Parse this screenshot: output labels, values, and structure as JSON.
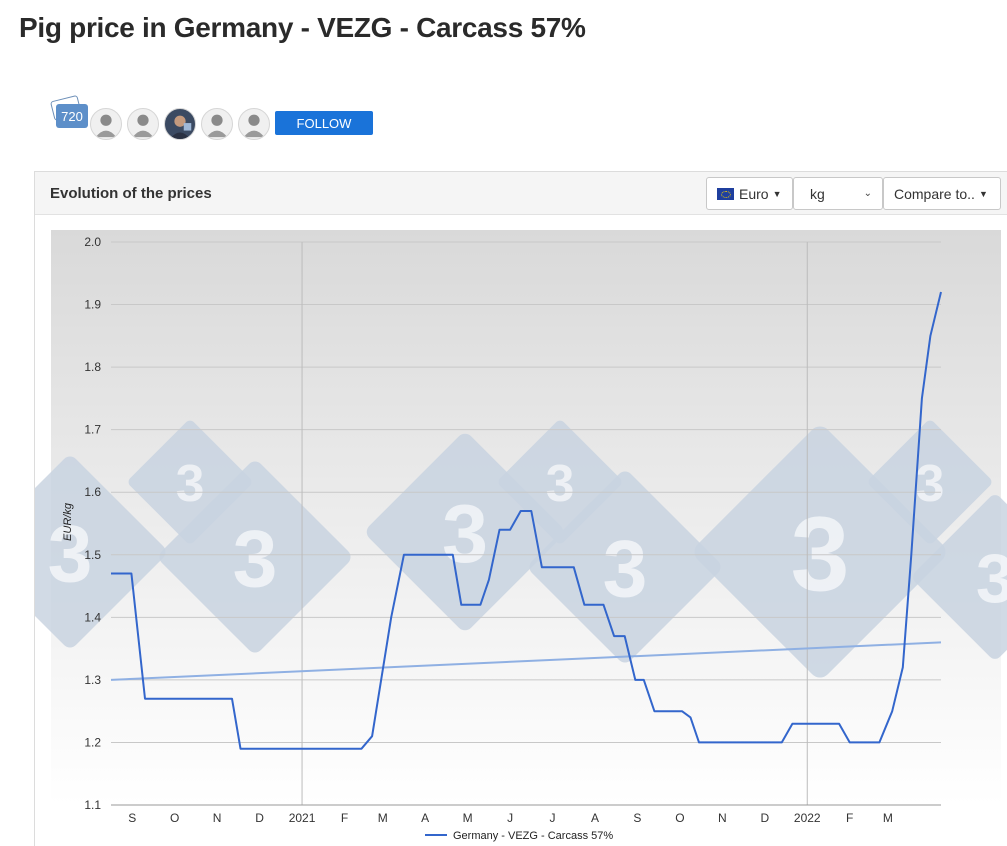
{
  "page": {
    "title": "Pig price in Germany - VEZG - Carcass 57%"
  },
  "follow": {
    "followers_count": "720",
    "avatars": [
      "user-avatar",
      "user-avatar",
      "user-photo-avatar",
      "user-avatar",
      "user-avatar"
    ],
    "follow_label": "FOLLOW"
  },
  "panel": {
    "title": "Evolution of the prices",
    "currency_label": "Euro",
    "unit_value": "kg",
    "compare_label": "Compare to.."
  },
  "colors": {
    "series": "#3366cc",
    "trend": "#8fb0e3",
    "button": "#1a73d9",
    "watermark": "#c9d4e1"
  },
  "chart_data": {
    "type": "line",
    "ylabel": "EUR/kg",
    "ylim": [
      1.1,
      2.0
    ],
    "yticks": [
      1.1,
      1.2,
      1.3,
      1.4,
      1.5,
      1.6,
      1.7,
      1.8,
      1.9,
      2.0
    ],
    "x_range": [
      0,
      19.3
    ],
    "x_ticks": [
      {
        "label": "S",
        "x": 0.5
      },
      {
        "label": "O",
        "x": 1.5
      },
      {
        "label": "N",
        "x": 2.5
      },
      {
        "label": "D",
        "x": 3.5
      },
      {
        "label": "2021",
        "x": 4.5
      },
      {
        "label": "F",
        "x": 5.5
      },
      {
        "label": "M",
        "x": 6.4
      },
      {
        "label": "A",
        "x": 7.4
      },
      {
        "label": "M",
        "x": 8.4
      },
      {
        "label": "J",
        "x": 9.4
      },
      {
        "label": "J",
        "x": 10.4
      },
      {
        "label": "A",
        "x": 11.4
      },
      {
        "label": "S",
        "x": 12.4
      },
      {
        "label": "O",
        "x": 13.4
      },
      {
        "label": "N",
        "x": 14.4
      },
      {
        "label": "D",
        "x": 15.4
      },
      {
        "label": "2022",
        "x": 16.4
      },
      {
        "label": "F",
        "x": 17.4
      },
      {
        "label": "M",
        "x": 18.3
      }
    ],
    "grid": true,
    "legend": "bottom-center",
    "series": [
      {
        "name": "Germany - VEZG - Carcass 57%",
        "points": [
          [
            0,
            1.47
          ],
          [
            0.48,
            1.47
          ],
          [
            0.8,
            1.27
          ],
          [
            2.85,
            1.27
          ],
          [
            3.05,
            1.19
          ],
          [
            5.9,
            1.19
          ],
          [
            6.15,
            1.21
          ],
          [
            6.6,
            1.4
          ],
          [
            6.9,
            1.5
          ],
          [
            8.05,
            1.5
          ],
          [
            8.25,
            1.42
          ],
          [
            8.7,
            1.42
          ],
          [
            8.9,
            1.46
          ],
          [
            9.15,
            1.54
          ],
          [
            9.4,
            1.54
          ],
          [
            9.65,
            1.57
          ],
          [
            9.9,
            1.57
          ],
          [
            10.15,
            1.48
          ],
          [
            10.9,
            1.48
          ],
          [
            11.15,
            1.42
          ],
          [
            11.6,
            1.42
          ],
          [
            11.85,
            1.37
          ],
          [
            12.1,
            1.37
          ],
          [
            12.35,
            1.3
          ],
          [
            12.55,
            1.3
          ],
          [
            12.8,
            1.25
          ],
          [
            13.45,
            1.25
          ],
          [
            13.65,
            1.24
          ],
          [
            13.85,
            1.2
          ],
          [
            15.8,
            1.2
          ],
          [
            16.05,
            1.23
          ],
          [
            17.15,
            1.23
          ],
          [
            17.4,
            1.2
          ],
          [
            18.1,
            1.2
          ],
          [
            18.4,
            1.25
          ],
          [
            18.65,
            1.32
          ],
          [
            18.85,
            1.5
          ],
          [
            19.1,
            1.75
          ],
          [
            19.3,
            1.85
          ],
          [
            19.55,
            1.92
          ]
        ]
      }
    ],
    "trend": {
      "from": [
        0,
        1.3
      ],
      "to": [
        19.55,
        1.36
      ]
    }
  }
}
